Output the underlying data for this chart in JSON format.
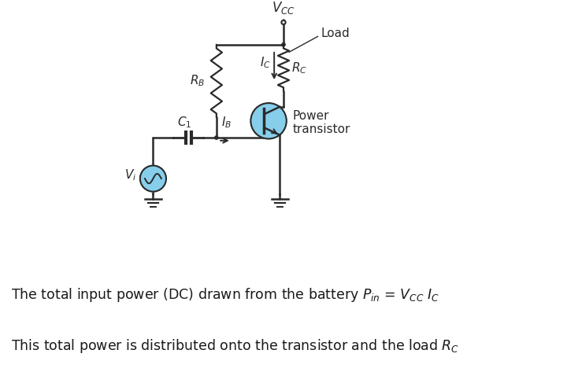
{
  "background_color": "#ffffff",
  "wire_color": "#2a2a2a",
  "transistor_circle_color": "#87ceeb",
  "source_circle_color": "#87ceeb",
  "labels": {
    "vcc": "$V_{CC}$",
    "rb": "$R_B$",
    "rc": "$R_C$",
    "c1": "$C_1$",
    "ic": "$I_C$",
    "ib": "$I_B$",
    "vi": "$V_i$",
    "load": "Load",
    "transistor": "Power\ntransistor"
  },
  "text_line1": "The total input power (DC) drawn from the battery $P_{in}$ = $V_{CC}$ $I_C$",
  "text_line2": "This total power is distributed onto the transistor and the load $R_C$",
  "text_color": "#1a1a1a",
  "text_fontsize": 12.5
}
